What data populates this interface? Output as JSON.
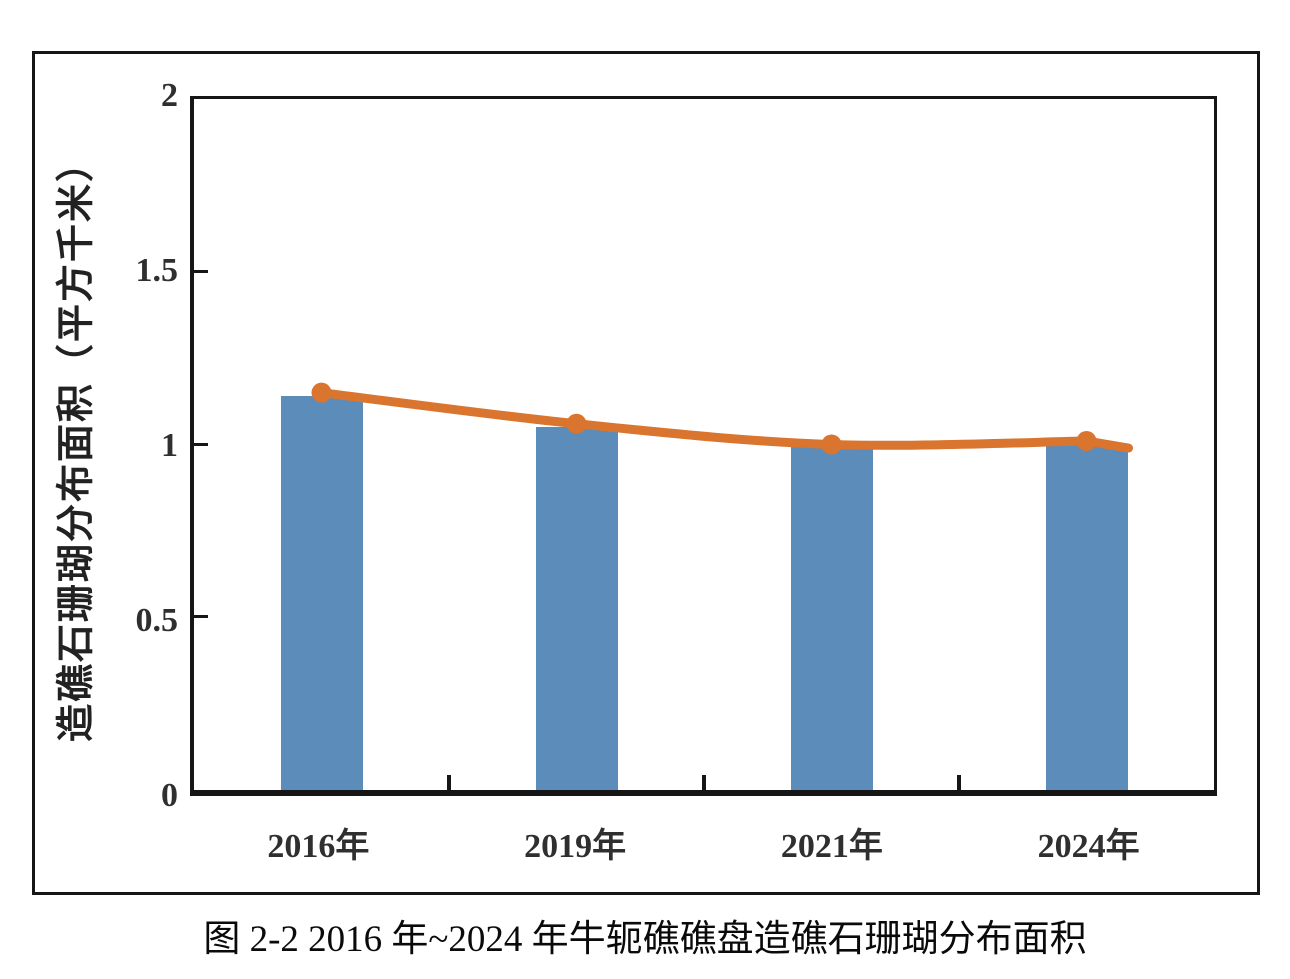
{
  "figure": {
    "caption": "图 2-2 2016 年~2024 年牛轭礁礁盘造礁石珊瑚分布面积"
  },
  "colors": {
    "bar": "#5B8CBA",
    "line": "#D9752E",
    "axis": "#161616",
    "text": "#2F2F2F"
  },
  "chart_data": {
    "type": "combo_bar_line",
    "categories": [
      "2016年",
      "2019年",
      "2021年",
      "2024年"
    ],
    "series": [
      {
        "name": "bar",
        "type": "bar",
        "values": [
          1.14,
          1.05,
          1.0,
          1.0
        ]
      },
      {
        "name": "line",
        "type": "line",
        "values": [
          1.15,
          1.06,
          1.0,
          1.01
        ]
      }
    ],
    "title": "",
    "xlabel": "",
    "ylabel": "造礁石珊瑚分布面积（平方千米）",
    "ylim": [
      0,
      2
    ],
    "y_ticks": [
      "2",
      "1.5",
      "1",
      "0.5",
      "0"
    ],
    "grid": false,
    "legend": false
  }
}
